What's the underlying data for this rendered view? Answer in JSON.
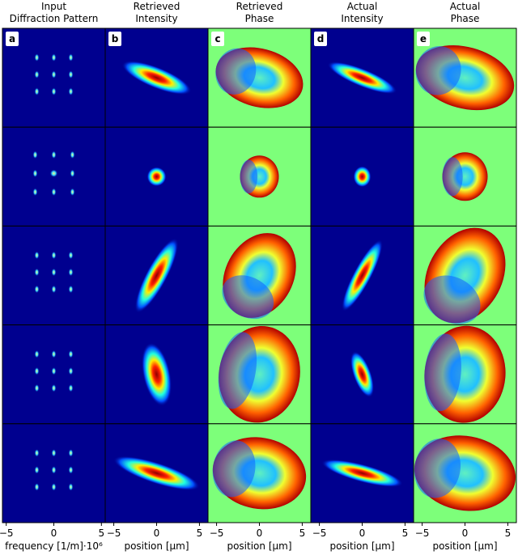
{
  "figure": {
    "columns": [
      {
        "title": [
          "Input",
          "Diffraction Pattern"
        ],
        "letter": "a",
        "xlabel": "frequency [1/m]·10⁶",
        "xlim": [
          -5.4,
          5.4
        ],
        "xticks": [
          {
            "value": -5,
            "label": "−5"
          },
          0,
          5
        ]
      },
      {
        "title": [
          "Retrieved",
          "Intensity"
        ],
        "letter": "b",
        "xlabel": "position [μm]",
        "xlim": [
          -6,
          6
        ],
        "xticks": [
          {
            "value": -5,
            "label": "−5"
          },
          0,
          5
        ]
      },
      {
        "title": [
          "Retrieved",
          "Phase"
        ],
        "letter": "c",
        "xlabel": "position [μm]",
        "xlim": [
          -6,
          6
        ],
        "xticks": [
          {
            "value": -5,
            "label": "−5"
          },
          0,
          5
        ]
      },
      {
        "title": [
          "Actual",
          "Intensity"
        ],
        "letter": "d",
        "xlabel": "position [μm]",
        "xlim": [
          -6,
          6
        ],
        "xticks": [
          {
            "value": -5,
            "label": "−5"
          },
          0,
          5
        ]
      },
      {
        "title": [
          "Actual",
          "Phase"
        ],
        "letter": "e",
        "xlabel": "position [μm]",
        "xlim": [
          -6,
          6
        ],
        "xticks": [
          {
            "value": -5,
            "label": "−5"
          },
          0,
          5
        ]
      }
    ]
  }
}
